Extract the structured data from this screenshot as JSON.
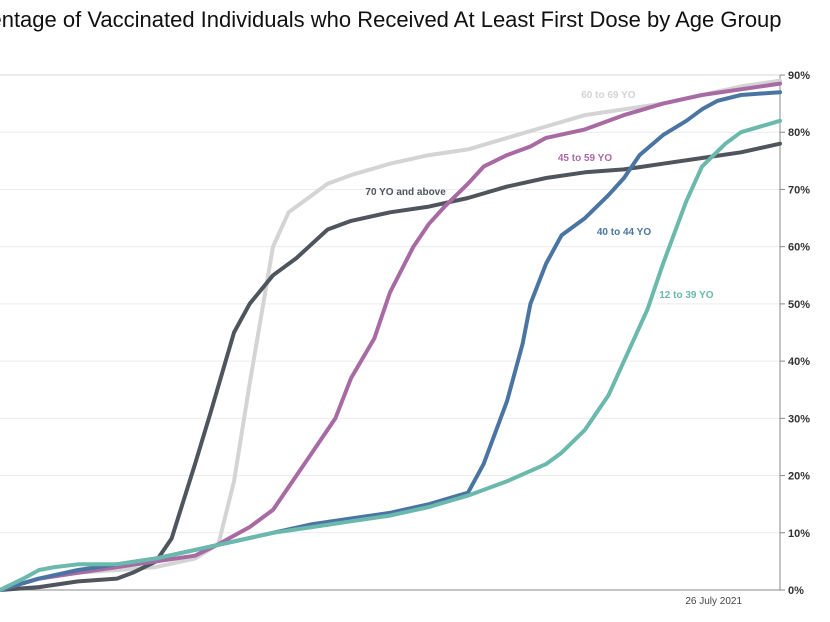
{
  "chart_data": {
    "type": "line",
    "title": "Percentage of Vaccinated Individuals who Received At Least First Dose by Age Group",
    "title_visible": "centage of Vaccinated Individuals who Received At Least First Dose by Age Group",
    "ylim": [
      0,
      90
    ],
    "yticks": [
      0,
      10,
      20,
      30,
      40,
      50,
      60,
      70,
      80,
      90
    ],
    "ytick_labels": [
      "0%",
      "10%",
      "20%",
      "30%",
      "40%",
      "50%",
      "60%",
      "70%",
      "80%",
      "90%"
    ],
    "xlim": [
      0,
      100
    ],
    "x_annotation": {
      "x": 91.5,
      "label": "26 July 2021"
    },
    "grid": "horizontal",
    "series": [
      {
        "name": "60 to 69 YO",
        "color": "#d4d4d4",
        "x": [
          0,
          5,
          10,
          15,
          20,
          25,
          28,
          30,
          32,
          35,
          37,
          40,
          42,
          45,
          50,
          55,
          60,
          65,
          70,
          75,
          80,
          85,
          90,
          95,
          100
        ],
        "y": [
          0,
          2,
          3,
          3.5,
          4,
          5.5,
          8,
          19,
          36,
          60,
          66,
          69,
          71,
          72.5,
          74.5,
          76,
          77,
          79,
          81,
          83,
          84,
          85,
          86.5,
          88,
          89
        ]
      },
      {
        "name": "70 YO and above",
        "color": "#4e555d",
        "x": [
          0,
          5,
          10,
          15,
          17,
          20,
          22,
          25,
          27,
          30,
          32,
          35,
          38,
          40,
          42,
          45,
          50,
          55,
          60,
          65,
          70,
          75,
          80,
          85,
          90,
          95,
          100
        ],
        "y": [
          0,
          0.5,
          1.5,
          2,
          3,
          5,
          9,
          22,
          31,
          45,
          50,
          55,
          58,
          60.5,
          63,
          64.5,
          66,
          67,
          68.5,
          70.5,
          72,
          73,
          73.5,
          74.5,
          75.5,
          76.5,
          78
        ]
      },
      {
        "name": "45 to 59 YO",
        "color": "#a86aa3",
        "x": [
          0,
          5,
          10,
          15,
          20,
          25,
          28,
          30,
          32,
          35,
          38,
          40,
          43,
          45,
          48,
          50,
          53,
          55,
          57,
          60,
          62,
          65,
          68,
          70,
          75,
          80,
          85,
          90,
          95,
          100
        ],
        "y": [
          0,
          2,
          3,
          4,
          5,
          6,
          8,
          9.5,
          11,
          14,
          20,
          24,
          30,
          37,
          44,
          52,
          60,
          64,
          67,
          71,
          74,
          76,
          77.5,
          79,
          80.5,
          83,
          85,
          86.5,
          87.5,
          88.5
        ]
      },
      {
        "name": "40 to 44 YO",
        "color": "#4a75a3",
        "x": [
          0,
          5,
          10,
          15,
          20,
          25,
          30,
          35,
          40,
          45,
          50,
          55,
          60,
          62,
          65,
          67,
          68,
          70,
          72,
          75,
          78,
          80,
          82,
          85,
          88,
          90,
          92,
          95,
          100
        ],
        "y": [
          0,
          2,
          3.5,
          4.5,
          5.5,
          7,
          8.5,
          10,
          11.5,
          12.5,
          13.5,
          15,
          17,
          22,
          33,
          43,
          50,
          57,
          62,
          65,
          69,
          72,
          76,
          79.5,
          82,
          84,
          85.5,
          86.5,
          87
        ]
      },
      {
        "name": "12 to 39 YO",
        "color": "#6bb8ad",
        "x": [
          0,
          3,
          5,
          7,
          10,
          15,
          20,
          25,
          30,
          35,
          40,
          45,
          50,
          55,
          60,
          65,
          70,
          72,
          75,
          78,
          80,
          83,
          85,
          88,
          90,
          93,
          95,
          100
        ],
        "y": [
          0,
          2,
          3.5,
          4,
          4.5,
          4.5,
          5.5,
          7,
          8.5,
          10,
          11,
          12,
          13,
          14.5,
          16.5,
          19,
          22,
          24,
          28,
          34,
          40,
          49,
          57,
          68,
          74,
          78,
          80,
          82
        ]
      }
    ]
  }
}
